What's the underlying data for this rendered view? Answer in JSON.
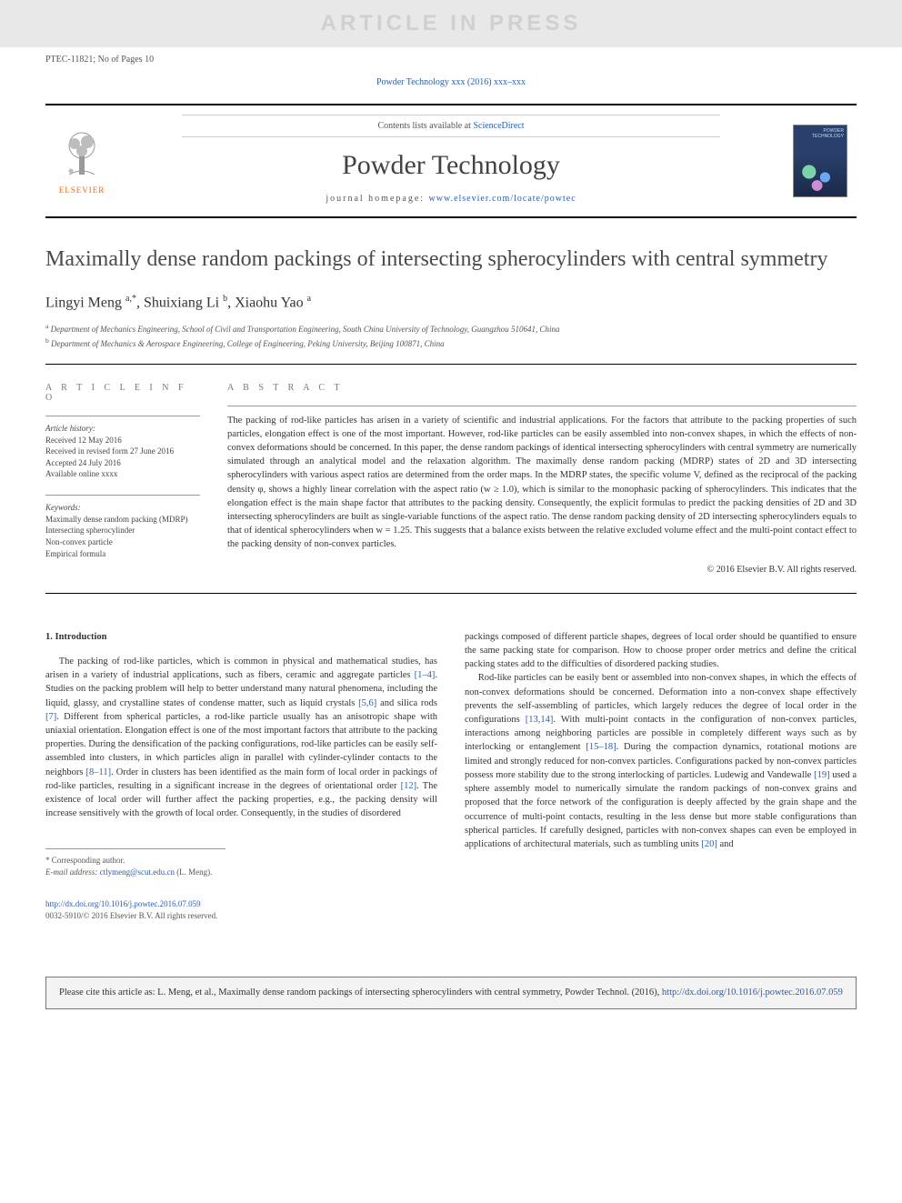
{
  "watermark": "ARTICLE IN PRESS",
  "header_meta": "PTEC-11821; No of Pages 10",
  "top_citation": "Powder Technology xxx (2016) xxx–xxx",
  "top_citation_url": "#",
  "journal_header": {
    "contents_prefix": "Contents lists available at ",
    "contents_link": "ScienceDirect",
    "journal_name": "Powder Technology",
    "homepage_prefix": "journal homepage: ",
    "homepage_link": "www.elsevier.com/locate/powtec",
    "publisher_name": "ELSEVIER"
  },
  "article": {
    "title": "Maximally dense random packings of intersecting spherocylinders with central symmetry",
    "authors_html": "Lingyi Meng <sup>a,*</sup>, Shuixiang Li <sup>b</sup>, Xiaohu Yao <sup>a</sup>",
    "affiliations": [
      {
        "sup": "a",
        "text": "Department of Mechanics Engineering, School of Civil and Transportation Engineering, South China University of Technology, Guangzhou 510641, China"
      },
      {
        "sup": "b",
        "text": "Department of Mechanics & Aerospace Engineering, College of Engineering, Peking University, Beijing 100871, China"
      }
    ]
  },
  "info": {
    "section_label": "A R T I C L E   I N F O",
    "history_label": "Article history:",
    "history": [
      "Received 12 May 2016",
      "Received in revised form 27 June 2016",
      "Accepted 24 July 2016",
      "Available online xxxx"
    ],
    "keywords_label": "Keywords:",
    "keywords": [
      "Maximally dense random packing (MDRP)",
      "Intersecting spherocylinder",
      "Non-convex particle",
      "Empirical formula"
    ]
  },
  "abstract": {
    "section_label": "A B S T R A C T",
    "text": "The packing of rod-like particles has arisen in a variety of scientific and industrial applications. For the factors that attribute to the packing properties of such particles, elongation effect is one of the most important. However, rod-like particles can be easily assembled into non-convex shapes, in which the effects of non-convex deformations should be concerned. In this paper, the dense random packings of identical intersecting spherocylinders with central symmetry are numerically simulated through an analytical model and the relaxation algorithm. The maximally dense random packing (MDRP) states of 2D and 3D intersecting spherocylinders with various aspect ratios are determined from the order maps. In the MDRP states, the specific volume V, defined as the reciprocal of the packing density φ, shows a highly linear correlation with the aspect ratio (w ≥ 1.0), which is similar to the monophasic packing of spherocylinders. This indicates that the elongation effect is the main shape factor that attributes to the packing density. Consequently, the explicit formulas to predict the packing densities of 2D and 3D intersecting spherocylinders are built as single-variable functions of the aspect ratio. The dense random packing density of 2D intersecting spherocylinders equals to that of identical spherocylinders when w = 1.25. This suggests that a balance exists between the relative excluded volume effect and the multi-point contact effect to the packing density of non-convex particles.",
    "copyright": "© 2016 Elsevier B.V. All rights reserved."
  },
  "body": {
    "intro_heading": "1. Introduction",
    "col1_refs": {
      "r1": "[1–4]",
      "r2": "[5,6]",
      "r3": "[7]",
      "r4": "[8–11]",
      "r5": "[12]"
    },
    "col1_text_parts": {
      "p1a": "The packing of rod-like particles, which is common in physical and mathematical studies, has arisen in a variety of industrial applications, such as fibers, ceramic and aggregate particles ",
      "p1b": ". Studies on the packing problem will help to better understand many natural phenomena, including the liquid, glassy, and crystalline states of condense matter, such as liquid crystals ",
      "p1c": " and silica rods ",
      "p1d": ". Different from spherical particles, a rod-like particle usually has an anisotropic shape with uniaxial orientation. Elongation effect is one of the most important factors that attribute to the packing properties. During the densification of the packing configurations, rod-like particles can be easily self-assembled into clusters, in which particles align in parallel with cylinder-cylinder contacts to the neighbors ",
      "p1e": ". Order in clusters has been identified as the main form of local order in packings of rod-like particles, resulting in a significant increase in the degrees of orientational order ",
      "p1f": ". The existence of local order will further affect the packing properties, e.g., the packing density will increase sensitively with the growth of local order. Consequently, in the studies of disordered"
    },
    "col2_refs": {
      "r1": "[13,14]",
      "r2": "[15–18]",
      "r3": "[19]",
      "r4": "[20]"
    },
    "col2_text_parts": {
      "p1": "packings composed of different particle shapes, degrees of local order should be quantified to ensure the same packing state for comparison. How to choose proper order metrics and define the critical packing states add to the difficulties of disordered packing studies.",
      "p2a": "Rod-like particles can be easily bent or assembled into non-convex shapes, in which the effects of non-convex deformations should be concerned. Deformation into a non-convex shape effectively prevents the self-assembling of particles, which largely reduces the degree of local order in the configurations ",
      "p2b": ". With multi-point contacts in the configuration of non-convex particles, interactions among neighboring particles are possible in completely different ways such as by interlocking or entanglement ",
      "p2c": ". During the compaction dynamics, rotational motions are limited and strongly reduced for non-convex particles. Configurations packed by non-convex particles possess more stability due to the strong interlocking of particles. Ludewig and Vandewalle ",
      "p2d": " used a sphere assembly model to numerically simulate the random packings of non-convex grains and proposed that the force network of the configuration is deeply affected by the grain shape and the occurrence of multi-point contacts, resulting in the less dense but more stable configurations than spherical particles. If carefully designed, particles with non-convex shapes can even be employed in applications of architectural materials, such as tumbling units ",
      "p2e": " and"
    }
  },
  "footnotes": {
    "corresp_label": "* Corresponding author.",
    "email_label": "E-mail address: ",
    "email": "ctlymeng@scut.edu.cn",
    "email_name": " (L. Meng)."
  },
  "doi": {
    "link": "http://dx.doi.org/10.1016/j.powtec.2016.07.059",
    "issn_line": "0032-5910/© 2016 Elsevier B.V. All rights reserved."
  },
  "citation_box": {
    "prefix": "Please cite this article as: L. Meng, et al., Maximally dense random packings of intersecting spherocylinders with central symmetry, Powder Technol. (2016), ",
    "link": "http://dx.doi.org/10.1016/j.powtec.2016.07.059"
  },
  "colors": {
    "link": "#2a5db0",
    "text": "#333333",
    "muted": "#555555",
    "rule": "#000000",
    "watermark_bg": "#e8e8e8",
    "watermark_fg": "#d0d0d0",
    "elsevier_orange": "#ff6600",
    "citation_bg": "#f3f3f3"
  },
  "fonts": {
    "body_family": "Georgia, 'Times New Roman', serif",
    "title_size_pt": 18,
    "journal_name_size_pt": 22,
    "body_size_pt": 8,
    "small_size_pt": 7
  }
}
